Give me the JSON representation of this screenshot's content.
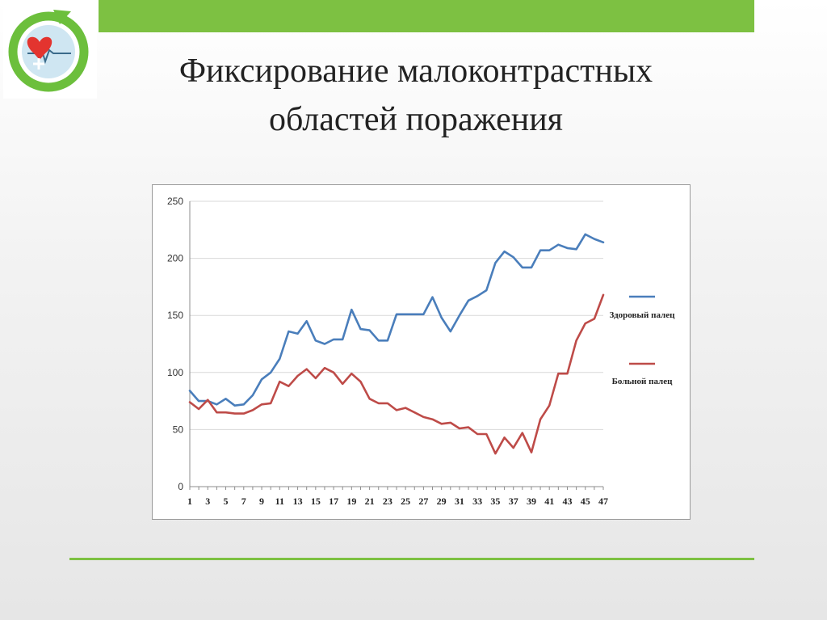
{
  "slide": {
    "title_line1": "Фиксирование малоконтрастных",
    "title_line2": "областей поражения"
  },
  "colors": {
    "accent_green": "#7dc142",
    "series_healthy": "#4a7ebb",
    "series_sick": "#be4b48",
    "logo_arrow": "#6cbf3c",
    "logo_heart": "#e3342f"
  },
  "icons": {
    "logo": "heart-cycle-logo-icon"
  },
  "chart_data": {
    "type": "line",
    "title": "",
    "xlabel": "",
    "ylabel": "",
    "ylim": [
      0,
      250
    ],
    "yticks": [
      "0",
      "50",
      "100",
      "150",
      "200",
      "250"
    ],
    "xticks": [
      "1",
      "3",
      "5",
      "7",
      "9",
      "11",
      "13",
      "15",
      "17",
      "19",
      "21",
      "23",
      "25",
      "27",
      "29",
      "31",
      "33",
      "35",
      "37",
      "39",
      "41",
      "43",
      "45",
      "47"
    ],
    "x": [
      1,
      2,
      3,
      4,
      5,
      6,
      7,
      8,
      9,
      10,
      11,
      12,
      13,
      14,
      15,
      16,
      17,
      18,
      19,
      20,
      21,
      22,
      23,
      24,
      25,
      26,
      27,
      28,
      29,
      30,
      31,
      32,
      33,
      34,
      35,
      36,
      37,
      38,
      39,
      40,
      41,
      42,
      43,
      44,
      45,
      46,
      47
    ],
    "grid": "horizontal",
    "legend_position": "right",
    "series": [
      {
        "name": "Здоровый палец",
        "values": [
          84,
          75,
          75,
          72,
          77,
          71,
          72,
          80,
          94,
          100,
          112,
          136,
          134,
          145,
          128,
          125,
          129,
          129,
          155,
          138,
          137,
          128,
          128,
          151,
          151,
          151,
          151,
          166,
          148,
          136,
          150,
          163,
          167,
          172,
          196,
          206,
          201,
          192,
          192,
          207,
          207,
          212,
          209,
          208,
          221,
          217,
          214
        ]
      },
      {
        "name": "Больной палец",
        "values": [
          74,
          68,
          76,
          65,
          65,
          64,
          64,
          67,
          72,
          73,
          92,
          88,
          97,
          103,
          95,
          104,
          100,
          90,
          99,
          92,
          77,
          73,
          73,
          67,
          69,
          65,
          61,
          59,
          55,
          56,
          51,
          52,
          46,
          46,
          29,
          43,
          34,
          47,
          30,
          59,
          71,
          99,
          99,
          128,
          143,
          147,
          168
        ]
      }
    ]
  }
}
